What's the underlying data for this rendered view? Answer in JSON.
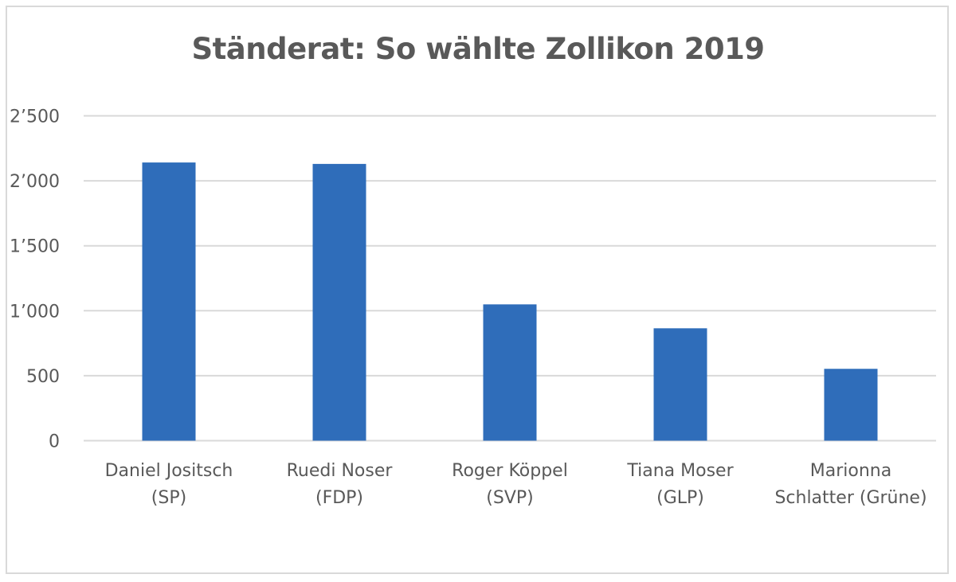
{
  "chart_data": {
    "type": "bar",
    "title": "Ständerat: So wählte Zollikon 2019",
    "categories": [
      [
        "Daniel Jositsch",
        "(SP)"
      ],
      [
        "Ruedi Noser",
        "(FDP)"
      ],
      [
        "Roger Köppel",
        "(SVP)"
      ],
      [
        "Tiana Moser",
        "(GLP)"
      ],
      [
        "Marionna",
        "Schlatter (Grüne)"
      ]
    ],
    "values": [
      2141,
      2130,
      1049,
      865,
      553
    ],
    "ylim": [
      0,
      2500
    ],
    "yticks": [
      0,
      500,
      1000,
      1500,
      2000,
      2500
    ],
    "ytick_labels": [
      "0",
      "500",
      "1’000",
      "1’500",
      "2’000",
      "2’500"
    ],
    "xlabel": "",
    "ylabel": "",
    "grid": true,
    "legend": "none",
    "bar_color": "#2f6dba",
    "grid_color": "#d9d9d9",
    "text_color": "#595959"
  }
}
